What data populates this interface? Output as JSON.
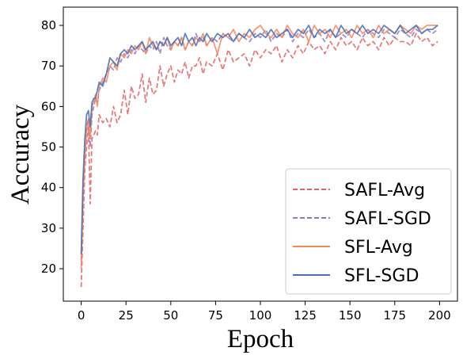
{
  "chart_data": {
    "type": "line",
    "xlabel": "Epoch",
    "ylabel": "Accuracy",
    "xlim": [
      -10,
      210
    ],
    "ylim": [
      12,
      84.5
    ],
    "xticks": [
      0,
      25,
      50,
      75,
      100,
      125,
      150,
      175,
      200
    ],
    "yticks": [
      20,
      30,
      40,
      50,
      60,
      70,
      80
    ],
    "grid": false,
    "legend_position": "lower-right",
    "series": [
      {
        "name": "SAFL-Avg",
        "color": "#e06666",
        "dash": "dashed",
        "x": [
          0,
          1,
          2,
          3,
          4,
          5,
          6,
          7,
          8,
          9,
          10,
          12,
          14,
          16,
          18,
          20,
          22,
          24,
          26,
          28,
          30,
          32,
          34,
          36,
          38,
          40,
          42,
          44,
          46,
          48,
          50,
          52,
          54,
          56,
          58,
          60,
          62,
          64,
          66,
          68,
          70,
          73,
          76,
          79,
          82,
          85,
          88,
          91,
          94,
          97,
          100,
          103,
          106,
          109,
          112,
          115,
          118,
          121,
          124,
          127,
          130,
          133,
          136,
          139,
          142,
          145,
          148,
          151,
          154,
          157,
          160,
          163,
          166,
          169,
          172,
          175,
          178,
          181,
          184,
          187,
          190,
          193,
          196,
          199
        ],
        "values": [
          15.5,
          30,
          45,
          50,
          55,
          36,
          52,
          53,
          54,
          53,
          58,
          56,
          57,
          55,
          60,
          56,
          58,
          64,
          58,
          65,
          62,
          63,
          68,
          61,
          67,
          63,
          64,
          70,
          65,
          68,
          70,
          66,
          69,
          68,
          71,
          67,
          70,
          70,
          72,
          68,
          71,
          70,
          73,
          69,
          74,
          71,
          72,
          73,
          70,
          74,
          72,
          74,
          73,
          75,
          71,
          74,
          72,
          75,
          73,
          76,
          74,
          75,
          73,
          76,
          74,
          77,
          75,
          76,
          74,
          77,
          75,
          76,
          74,
          77,
          75,
          77,
          76,
          76,
          75,
          78,
          76,
          77,
          75,
          76
        ]
      },
      {
        "name": "SAFL-SGD",
        "color": "#8e7cc3",
        "dash": "dashed",
        "x": [
          0,
          1,
          2,
          3,
          4,
          5,
          6,
          7,
          8,
          9,
          10,
          12,
          14,
          16,
          18,
          20,
          22,
          24,
          26,
          28,
          30,
          32,
          34,
          36,
          38,
          40,
          42,
          44,
          46,
          48,
          50,
          52,
          54,
          56,
          58,
          60,
          62,
          64,
          66,
          68,
          70,
          73,
          76,
          79,
          82,
          85,
          88,
          91,
          94,
          97,
          100,
          103,
          106,
          109,
          112,
          115,
          118,
          121,
          124,
          127,
          130,
          133,
          136,
          139,
          142,
          145,
          148,
          151,
          154,
          157,
          160,
          163,
          166,
          169,
          172,
          175,
          178,
          181,
          184,
          187,
          190,
          193,
          196,
          199
        ],
        "values": [
          22,
          40,
          50,
          55,
          57,
          50,
          58,
          60,
          62,
          61,
          64,
          66,
          68,
          70,
          69,
          72,
          71,
          73,
          72,
          74,
          73,
          75,
          74,
          73,
          75,
          74,
          76,
          73,
          77,
          75,
          74,
          76,
          75,
          77,
          74,
          76,
          75,
          78,
          76,
          77,
          75,
          77,
          76,
          78,
          77,
          76,
          78,
          77,
          76,
          78,
          77,
          79,
          76,
          78,
          77,
          79,
          76,
          78,
          77,
          79,
          77,
          78,
          76,
          79,
          77,
          78,
          77,
          79,
          78,
          77,
          79,
          78,
          77,
          79,
          78,
          77,
          79,
          78,
          77,
          79,
          78,
          79,
          78,
          79
        ]
      },
      {
        "name": "SFL-Avg",
        "color": "#f4875c",
        "dash": "solid",
        "x": [
          0,
          1,
          2,
          3,
          4,
          5,
          6,
          7,
          8,
          9,
          10,
          12,
          14,
          16,
          18,
          20,
          22,
          24,
          26,
          28,
          30,
          32,
          34,
          36,
          38,
          40,
          42,
          44,
          46,
          48,
          50,
          52,
          54,
          56,
          58,
          60,
          62,
          64,
          66,
          68,
          70,
          73,
          76,
          79,
          82,
          85,
          88,
          91,
          94,
          97,
          100,
          103,
          106,
          109,
          112,
          115,
          118,
          121,
          124,
          127,
          130,
          133,
          136,
          139,
          142,
          145,
          148,
          151,
          154,
          157,
          160,
          163,
          166,
          169,
          172,
          175,
          178,
          181,
          184,
          187,
          190,
          193,
          196,
          199
        ],
        "values": [
          20,
          38,
          48,
          54,
          57,
          52,
          60,
          61,
          63,
          60,
          65,
          67,
          66,
          70,
          71,
          69,
          73,
          72,
          74,
          73,
          75,
          74,
          76,
          73,
          77,
          75,
          74,
          76,
          75,
          77,
          74,
          76,
          75,
          77,
          74,
          76,
          75,
          77,
          76,
          78,
          75,
          77,
          73,
          78,
          77,
          79,
          76,
          78,
          77,
          79,
          80,
          78,
          77,
          79,
          77,
          80,
          78,
          77,
          79,
          76,
          80,
          78,
          79,
          77,
          80,
          78,
          79,
          77,
          80,
          78,
          79,
          77,
          80,
          78,
          79,
          78,
          80,
          79,
          78,
          80,
          79,
          80,
          80,
          80
        ]
      },
      {
        "name": "SFL-SGD",
        "color": "#4a6fb5",
        "dash": "solid",
        "x": [
          0,
          1,
          2,
          3,
          4,
          5,
          6,
          7,
          8,
          9,
          10,
          12,
          14,
          16,
          18,
          20,
          22,
          24,
          26,
          28,
          30,
          32,
          34,
          36,
          38,
          40,
          42,
          44,
          46,
          48,
          50,
          52,
          54,
          56,
          58,
          60,
          62,
          64,
          66,
          68,
          70,
          73,
          76,
          79,
          82,
          85,
          88,
          91,
          94,
          97,
          100,
          103,
          106,
          109,
          112,
          115,
          118,
          121,
          124,
          127,
          130,
          133,
          136,
          139,
          142,
          145,
          148,
          151,
          154,
          157,
          160,
          163,
          166,
          169,
          172,
          175,
          178,
          181,
          184,
          187,
          190,
          193,
          196,
          199
        ],
        "values": [
          23.5,
          42,
          52,
          58,
          59,
          55,
          61,
          62,
          62,
          64,
          66,
          65,
          68,
          72,
          71,
          70,
          73,
          74,
          73,
          75,
          74,
          75,
          76,
          74,
          75,
          76,
          74,
          76,
          75,
          77,
          75,
          76,
          77,
          75,
          78,
          76,
          77,
          75,
          77,
          76,
          78,
          76,
          78,
          77,
          78,
          76,
          78,
          77,
          79,
          77,
          78,
          77,
          79,
          77,
          78,
          79,
          77,
          79,
          78,
          80,
          77,
          79,
          78,
          79,
          77,
          80,
          78,
          79,
          78,
          80,
          78,
          79,
          78,
          80,
          79,
          78,
          80,
          78,
          79,
          80,
          78,
          79,
          79,
          80
        ]
      }
    ]
  }
}
